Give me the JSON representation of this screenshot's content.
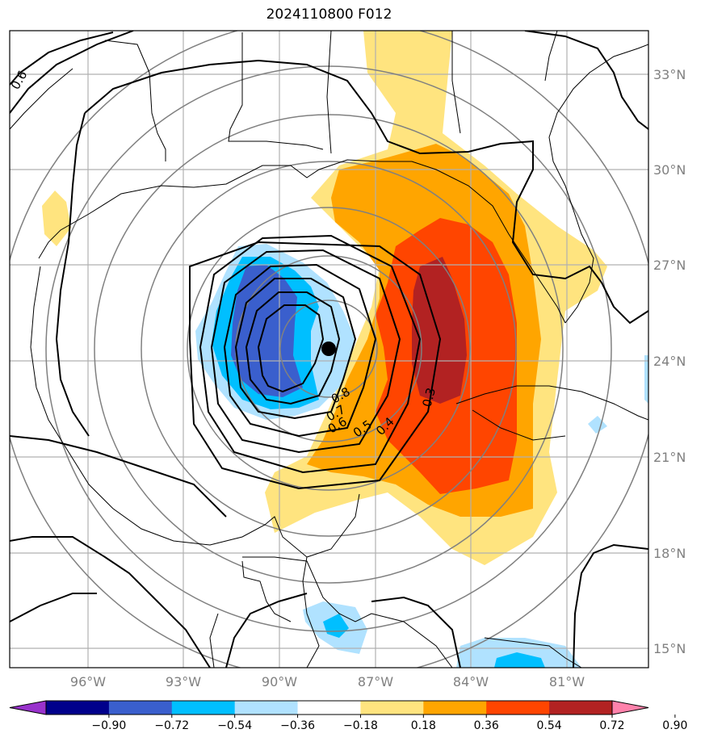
{
  "title": "2024110800 F012",
  "latitude_labels": [
    "33°N",
    "30°N",
    "27°N",
    "24°N",
    "21°N",
    "18°N",
    "15°N"
  ],
  "longitude_labels": [
    "96°W",
    "93°W",
    "90°W",
    "87°W",
    "84°W",
    "81°W"
  ],
  "colorbar": {
    "tick_labels": [
      "−0.90",
      "−0.72",
      "−0.54",
      "−0.36",
      "−0.18",
      "0.18",
      "0.36",
      "0.54",
      "0.72",
      "0.90"
    ],
    "colors": [
      "#9932cc",
      "#00008b",
      "#3a5fcd",
      "#00bfff",
      "#b0e2ff",
      "#ffffff",
      "#ffe47f",
      "#ffa500",
      "#ff4500",
      "#b22222",
      "#ff82ab"
    ]
  },
  "contour_labels": [
    "0.8",
    "0.7",
    "0.6",
    "0.5",
    "0.4",
    "0.3",
    "0.6"
  ],
  "storm_center_marker": "storm-center-dot"
}
